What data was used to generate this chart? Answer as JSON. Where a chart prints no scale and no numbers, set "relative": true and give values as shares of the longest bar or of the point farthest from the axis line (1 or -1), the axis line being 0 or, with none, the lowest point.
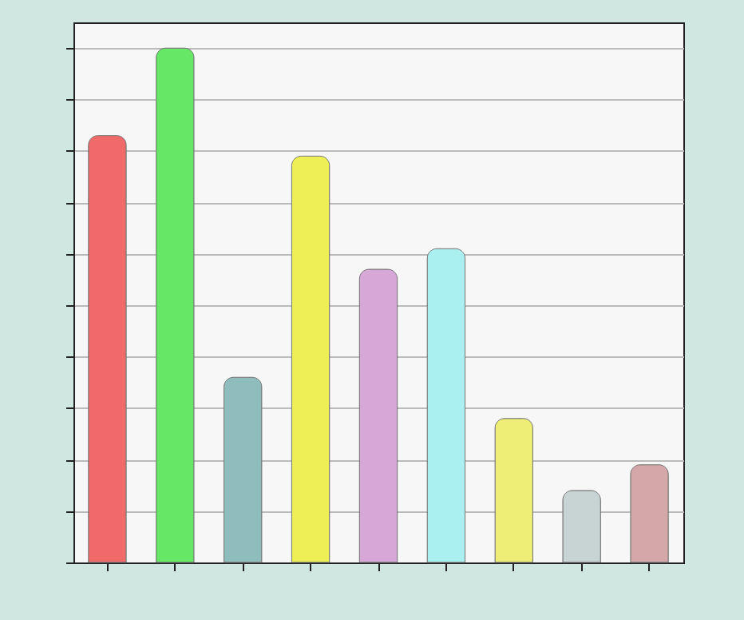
{
  "chart_data": {
    "type": "bar",
    "relative": true,
    "grid": "y",
    "categories": [
      null,
      null,
      null,
      null,
      null,
      null,
      null,
      null,
      null
    ],
    "values": [
      0.83,
      1,
      0.36,
      0.79,
      0.57,
      0.61,
      0.28,
      0.14,
      0.19
    ],
    "colors": [
      "#f06a6a",
      "#66e866",
      "#8fbcbc",
      "#eeee55",
      "#d7a8d7",
      "#aaf0f0",
      "#eeee77",
      "#c8d4d4",
      "#d4a8a8"
    ]
  }
}
